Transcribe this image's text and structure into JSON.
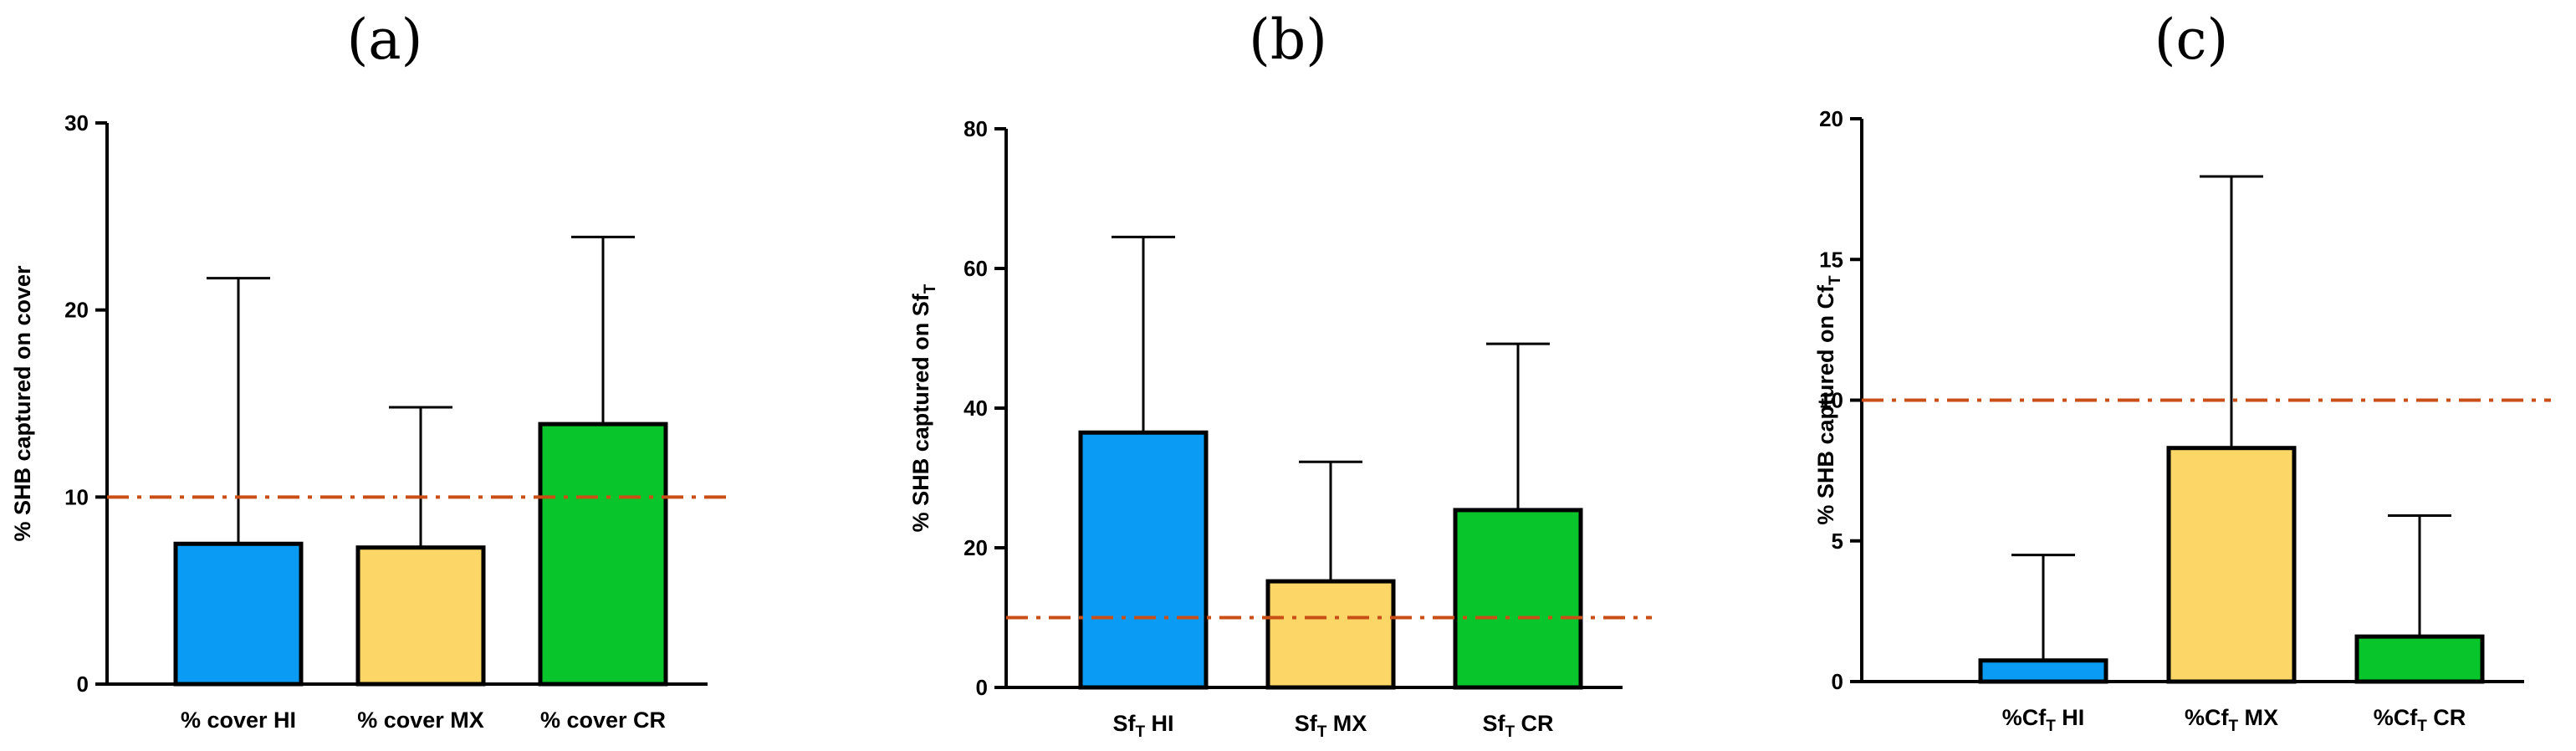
{
  "chart_data": [
    {
      "type": "bar",
      "panel": "(a)",
      "ylabel": "% SHB captured on cover",
      "ylim": [
        0,
        30
      ],
      "yticks": [
        0,
        10,
        20,
        30
      ],
      "categories": [
        {
          "label": "% cover HI",
          "base": "% cover HI",
          "sub": ""
        },
        {
          "label": "% cover MX",
          "base": "% cover MX",
          "sub": ""
        },
        {
          "label": "% cover CR",
          "base": "% cover CR",
          "sub": ""
        }
      ],
      "values": [
        7.5,
        7.3,
        13.9
      ],
      "error_upper": [
        21.7,
        14.8,
        23.9
      ],
      "threshold": 10
    },
    {
      "type": "bar",
      "panel": "(b)",
      "ylabel": "% SHB captured on Sf",
      "ylabel_sub": "T",
      "ylim": [
        0,
        80
      ],
      "yticks": [
        0,
        20,
        40,
        60,
        80
      ],
      "categories": [
        {
          "label": "SfT HI",
          "base": "Sf",
          "sub": "T",
          "rest": " HI"
        },
        {
          "label": "SfT MX",
          "base": "Sf",
          "sub": "T",
          "rest": " MX"
        },
        {
          "label": "SfT CR",
          "base": "Sf",
          "sub": "T",
          "rest": " CR"
        }
      ],
      "values": [
        36.5,
        15.2,
        25.4
      ],
      "error_upper": [
        64.5,
        32.3,
        49.2
      ],
      "threshold": 10
    },
    {
      "type": "bar",
      "panel": "(c)",
      "ylabel": "% SHB captured on Cf",
      "ylabel_sub": "T",
      "ylim": [
        0,
        20
      ],
      "yticks": [
        0,
        5,
        10,
        15,
        20
      ],
      "categories": [
        {
          "label": "%CfT HI",
          "base": "%Cf",
          "sub": "T",
          "rest": " HI"
        },
        {
          "label": "%CfT MX",
          "base": "%Cf",
          "sub": "T",
          "rest": " MX"
        },
        {
          "label": "%CfT CR",
          "base": "%Cf",
          "sub": "T",
          "rest": " CR"
        }
      ],
      "values": [
        0.75,
        8.3,
        1.6
      ],
      "error_upper": [
        4.5,
        17.95,
        5.9
      ],
      "threshold": 10
    }
  ],
  "colors": {
    "bars": [
      "#0a9bf5",
      "#fcd667",
      "#08c52b"
    ],
    "threshold": "#c94f16",
    "axis": "#000000"
  }
}
